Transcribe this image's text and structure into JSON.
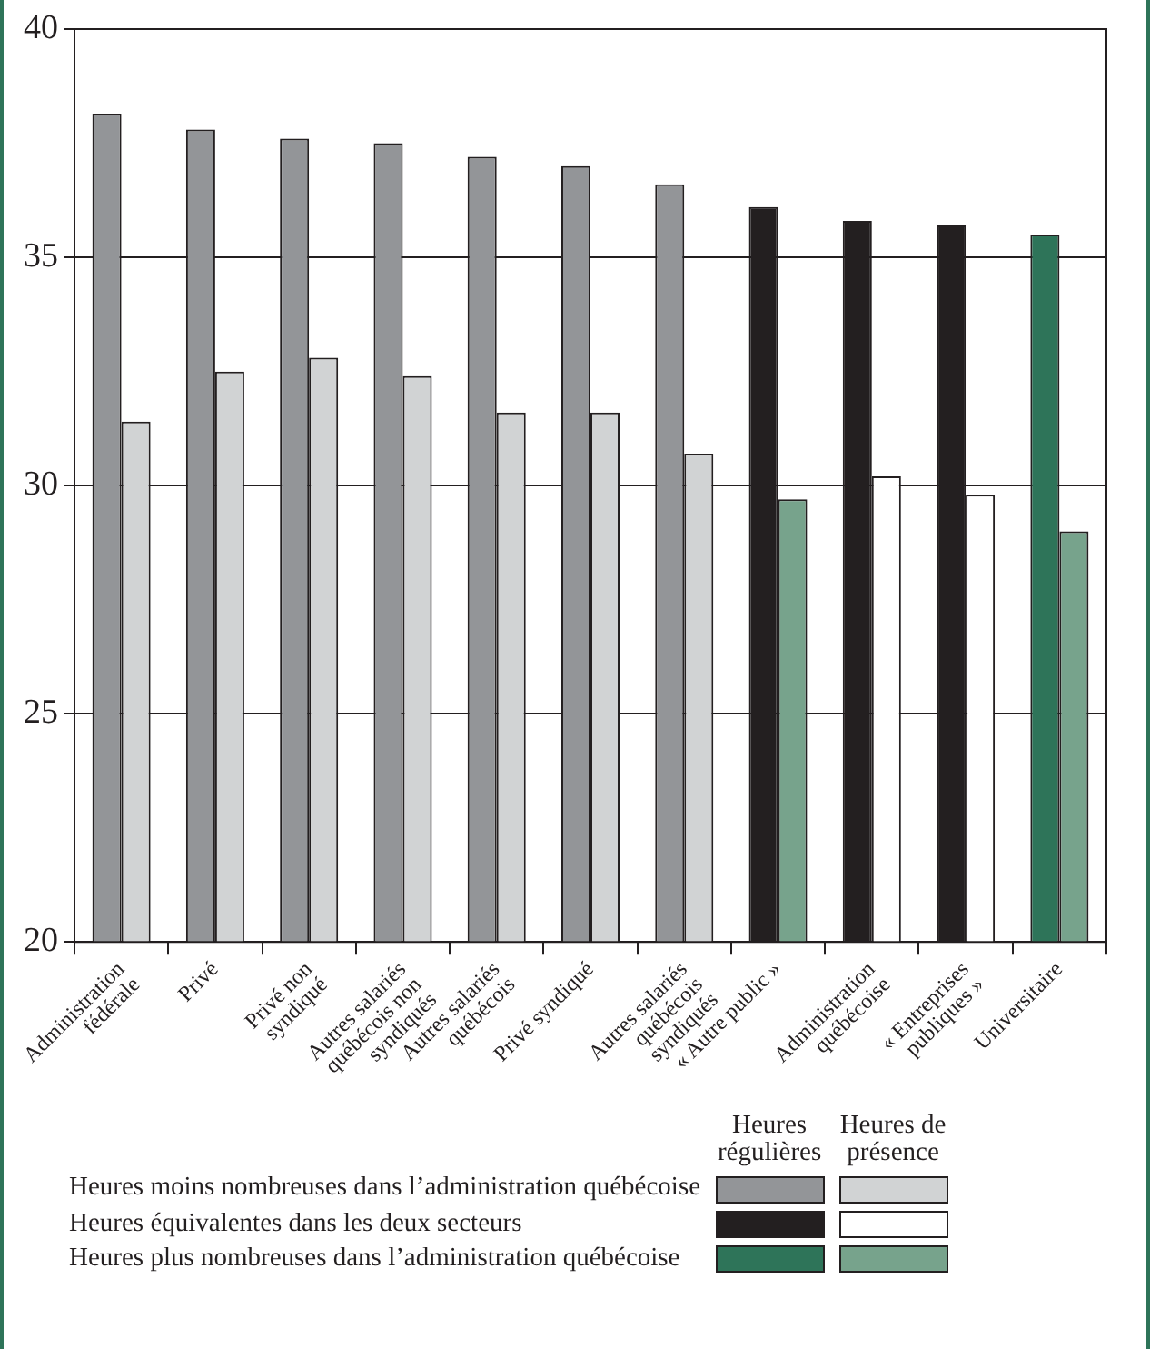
{
  "chart_data": {
    "type": "bar",
    "categories": [
      "Administration fédérale",
      "Privé",
      "Privé non syndiqué",
      "Autres salariés québécois non syndiqués",
      "Autres salariés québécois",
      "Privé syndiqué",
      "Autres salariés québécois syndiqués",
      "« Autre public »",
      "Administration québécoise",
      "« Entreprises publiques »",
      "Universitaire"
    ],
    "series": [
      {
        "name": "Heures régulières",
        "colors": [
          "#939598",
          "#939598",
          "#939598",
          "#939598",
          "#939598",
          "#939598",
          "#939598",
          "#231f20",
          "#231f20",
          "#231f20",
          "#2e7459"
        ],
        "values": [
          38.15,
          37.8,
          37.6,
          37.5,
          37.2,
          37.0,
          36.6,
          36.1,
          35.8,
          35.7,
          35.5
        ]
      },
      {
        "name": "Heures de présence",
        "colors": [
          "#d1d3d4",
          "#d1d3d4",
          "#d1d3d4",
          "#d1d3d4",
          "#d1d3d4",
          "#d1d3d4",
          "#d1d3d4",
          "#77a38c",
          "#ffffff",
          "#ffffff",
          "#77a38c"
        ],
        "values": [
          31.4,
          32.5,
          32.8,
          32.4,
          31.6,
          31.6,
          30.7,
          29.7,
          30.2,
          29.8,
          29.0
        ]
      }
    ],
    "ylim": [
      20,
      40
    ],
    "yticks": [
      20,
      25,
      30,
      35,
      40
    ],
    "grid": "y",
    "legend": "bottom",
    "annotations": [
      "Heures moins nombreuses dans l’administration québécoise",
      "Heures équivalentes dans les deux secteurs",
      "Heures plus nombreuses dans l’administration québécoise"
    ]
  }
}
